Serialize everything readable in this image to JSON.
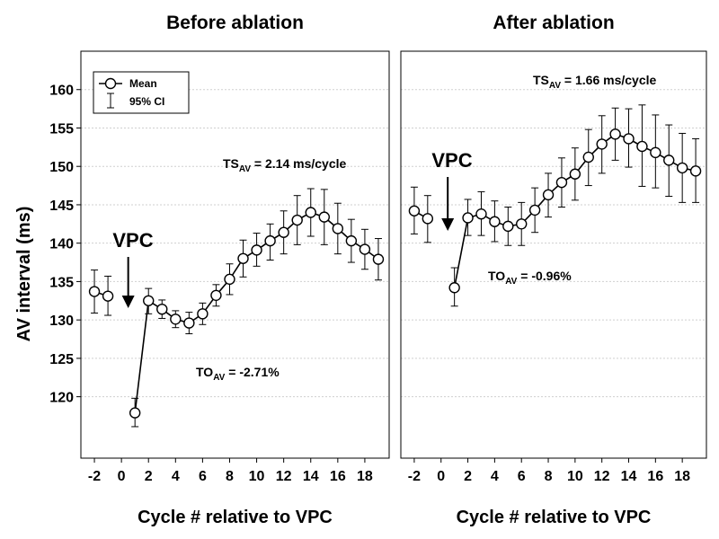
{
  "chart_data": {
    "type": "line",
    "ylabel": "AV interval (ms)",
    "ylim": [
      112,
      165
    ],
    "yticks": [
      120,
      125,
      130,
      135,
      140,
      145,
      150,
      155,
      160
    ],
    "xlim": [
      -3,
      19.8
    ],
    "xticks": [
      -2,
      0,
      2,
      4,
      6,
      8,
      10,
      12,
      14,
      16,
      18
    ],
    "grid": "horizontal",
    "legend": {
      "placement": "top-left",
      "mean_label": "Mean",
      "ci_label": "95% CI"
    },
    "panels": [
      {
        "title": "Before ablation",
        "xlabel": "Cycle # relative to VPC",
        "vpc_label": "VPC",
        "vpc_arrow_x": 0.5,
        "ts_text": {
          "prefix": "TS",
          "sub": "AV",
          "suffix": " = 2.14 ms/cycle"
        },
        "to_text": {
          "prefix": "TO",
          "sub": "AV",
          "suffix": " = -2.71%"
        },
        "series": [
          {
            "name": "Mean",
            "x": [
              -2,
              -1,
              1,
              2,
              3,
              4,
              5,
              6,
              7,
              8,
              9,
              10,
              11,
              12,
              13,
              14,
              15,
              16,
              17,
              18,
              19
            ],
            "y": [
              133.7,
              133.1,
              117.9,
              132.5,
              131.4,
              130.1,
              129.6,
              130.8,
              133.2,
              135.3,
              138.0,
              139.1,
              140.3,
              141.4,
              143.0,
              144.0,
              143.4,
              141.9,
              140.3,
              139.2,
              137.9
            ],
            "ci_low": [
              130.9,
              130.6,
              116.1,
              130.8,
              130.2,
              129.0,
              128.2,
              129.4,
              131.8,
              133.3,
              135.6,
              137.0,
              137.8,
              138.6,
              139.8,
              140.9,
              139.8,
              138.6,
              137.5,
              136.6,
              135.2
            ],
            "ci_high": [
              136.5,
              135.7,
              119.8,
              134.1,
              132.6,
              131.2,
              131.0,
              132.2,
              134.6,
              137.3,
              140.4,
              141.3,
              142.5,
              144.2,
              146.2,
              147.1,
              147.0,
              145.2,
              143.1,
              141.8,
              140.6
            ]
          }
        ]
      },
      {
        "title": "After ablation",
        "xlabel": "Cycle # relative to VPC",
        "vpc_label": "VPC",
        "vpc_arrow_x": 0.5,
        "ts_text": {
          "prefix": "TS",
          "sub": "AV",
          "suffix": " = 1.66 ms/cycle"
        },
        "to_text": {
          "prefix": "TO",
          "sub": "AV",
          "suffix": " = -0.96%"
        },
        "series": [
          {
            "name": "Mean",
            "x": [
              -2,
              -1,
              1,
              2,
              3,
              4,
              5,
              6,
              7,
              8,
              9,
              10,
              11,
              12,
              13,
              14,
              15,
              16,
              17,
              18,
              19
            ],
            "y": [
              144.2,
              143.2,
              134.2,
              143.3,
              143.8,
              142.8,
              142.2,
              142.5,
              144.3,
              146.3,
              147.9,
              149.0,
              151.2,
              152.9,
              154.2,
              153.6,
              152.6,
              151.8,
              150.8,
              149.8,
              149.4
            ],
            "ci_low": [
              141.2,
              140.1,
              131.8,
              141.0,
              141.0,
              140.2,
              139.7,
              139.7,
              141.4,
              143.4,
              144.7,
              145.6,
              147.5,
              149.1,
              150.8,
              149.9,
              147.4,
              147.2,
              146.1,
              145.3,
              145.3
            ],
            "ci_high": [
              147.3,
              146.2,
              136.8,
              145.7,
              146.7,
              145.5,
              144.7,
              145.3,
              147.2,
              149.1,
              151.1,
              152.4,
              154.8,
              156.6,
              157.6,
              157.5,
              158.0,
              156.7,
              155.4,
              154.3,
              153.6
            ]
          }
        ]
      }
    ]
  }
}
